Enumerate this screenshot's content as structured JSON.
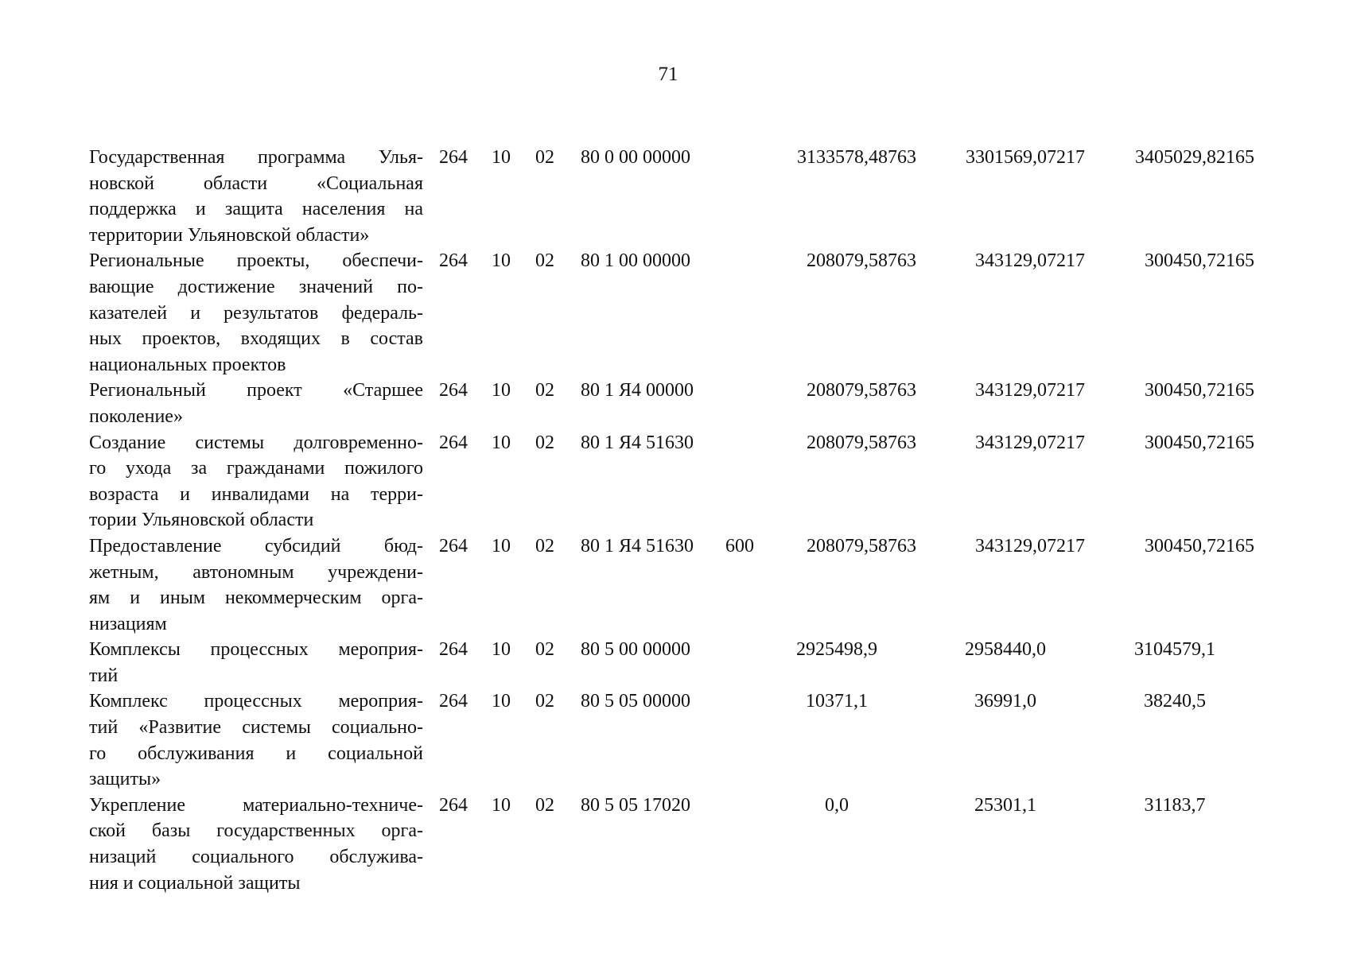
{
  "page_number": "71",
  "rows": [
    {
      "desc": [
        "Государственная программа Улья-",
        "новской области «Социальная",
        "поддержка и защита населения на",
        "территории Ульяновской области»"
      ],
      "gr": "264",
      "rz": "10",
      "pr": "02",
      "cs": "80 0 00 00000",
      "vr": "",
      "v1": "3133578,48763",
      "v2": "3301569,07217",
      "v3": "3405029,82165"
    },
    {
      "desc": [
        "Региональные проекты, обеспечи-",
        "вающие достижение значений по-",
        "казателей и результатов федераль-",
        "ных проектов, входящих в состав",
        "национальных проектов"
      ],
      "gr": "264",
      "rz": "10",
      "pr": "02",
      "cs": "80 1 00 00000",
      "vr": "",
      "v1": "208079,58763",
      "v2": "343129,07217",
      "v3": "300450,72165"
    },
    {
      "desc": [
        "Региональный проект «Старшее",
        "поколение»"
      ],
      "gr": "264",
      "rz": "10",
      "pr": "02",
      "cs": "80 1 Я4 00000",
      "vr": "",
      "v1": "208079,58763",
      "v2": "343129,07217",
      "v3": "300450,72165"
    },
    {
      "desc": [
        "Создание системы долговременно-",
        "го ухода за гражданами пожилого",
        "возраста и инвалидами на терри-",
        "тории Ульяновской области"
      ],
      "gr": "264",
      "rz": "10",
      "pr": "02",
      "cs": "80 1 Я4 51630",
      "vr": "",
      "v1": "208079,58763",
      "v2": "343129,07217",
      "v3": "300450,72165"
    },
    {
      "desc": [
        "Предоставление субсидий бюд-",
        "жетным, автономным учреждени-",
        "ям и иным некоммерческим орга-",
        "низациям"
      ],
      "gr": "264",
      "rz": "10",
      "pr": "02",
      "cs": "80 1 Я4 51630",
      "vr": "600",
      "v1": "208079,58763",
      "v2": "343129,07217",
      "v3": "300450,72165"
    },
    {
      "desc": [
        "Комплексы процессных мероприя-",
        "тий"
      ],
      "gr": "264",
      "rz": "10",
      "pr": "02",
      "cs": "80 5 00 00000",
      "vr": "",
      "v1": "2925498,9",
      "v2": "2958440,0",
      "v3": "3104579,1"
    },
    {
      "desc": [
        "Комплекс процессных мероприя-",
        "тий «Развитие системы социально-",
        "го обслуживания и социальной",
        "защиты»"
      ],
      "gr": "264",
      "rz": "10",
      "pr": "02",
      "cs": "80 5 05 00000",
      "vr": "",
      "v1": "10371,1",
      "v2": "36991,0",
      "v3": "38240,5"
    },
    {
      "desc": [
        "Укрепление материально-техниче-",
        "ской базы государственных орга-",
        "низаций социального обслужива-",
        "ния и социальной защиты"
      ],
      "gr": "264",
      "rz": "10",
      "pr": "02",
      "cs": "80 5 05 17020",
      "vr": "",
      "v1": "0,0",
      "v2": "25301,1",
      "v3": "31183,7"
    }
  ]
}
